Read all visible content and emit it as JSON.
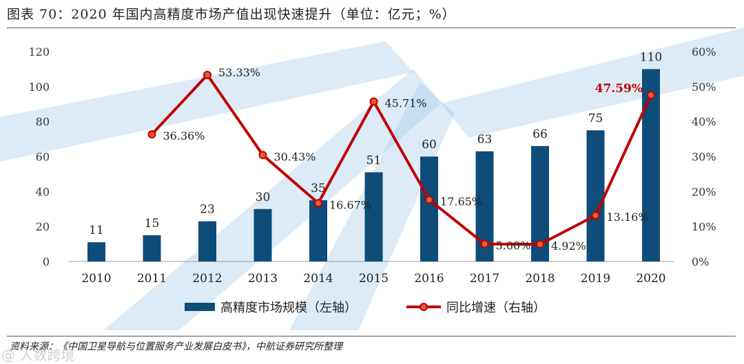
{
  "title": "图表 70：2020 年国内高精度市场产值出现快速提升（单位：亿元；%）",
  "source": "资料来源：《中国卫星导航与位置服务产业发展白皮书》，中航证券研究所整理",
  "watermark": "@ 人数跨境",
  "colors": {
    "bar": "#0E4C7A",
    "line": "#C00000",
    "marker_fill": "#E06030",
    "highlight_label": "#C00000",
    "background_rays": "#9CC7E4"
  },
  "chart_data": {
    "type": "bar+line",
    "categories": [
      "2010",
      "2011",
      "2012",
      "2013",
      "2014",
      "2015",
      "2016",
      "2017",
      "2018",
      "2019",
      "2020"
    ],
    "series": [
      {
        "name": "高精度市场规模（左轴）",
        "type": "bar",
        "axis": "left",
        "values": [
          11,
          15,
          23,
          30,
          35,
          51,
          60,
          63,
          66,
          75,
          110
        ],
        "labels": [
          "11",
          "15",
          "23",
          "30",
          "35",
          "51",
          "60",
          "63",
          "66",
          "75",
          "110"
        ]
      },
      {
        "name": "同比增速（右轴）",
        "type": "line",
        "axis": "right",
        "values": [
          null,
          36.36,
          53.33,
          30.43,
          16.67,
          45.71,
          17.65,
          5.0,
          4.92,
          13.16,
          47.59
        ],
        "labels": [
          "",
          "36.36%",
          "53.33%",
          "30.43%",
          "16.67%",
          "45.71%",
          "17.65%",
          "5.00%",
          "4.92%",
          "13.16%",
          "47.59%"
        ],
        "highlight_index": 10
      }
    ],
    "left_axis": {
      "min": 0,
      "max": 120,
      "ticks": [
        "0",
        "20",
        "40",
        "60",
        "80",
        "100",
        "120"
      ]
    },
    "right_axis": {
      "min": 0,
      "max": 60,
      "ticks": [
        "0%",
        "10%",
        "20%",
        "30%",
        "40%",
        "50%",
        "60%"
      ]
    },
    "legend": [
      "高精度市场规模（左轴）",
      "同比增速（右轴）"
    ],
    "legend_position": "bottom-center"
  }
}
